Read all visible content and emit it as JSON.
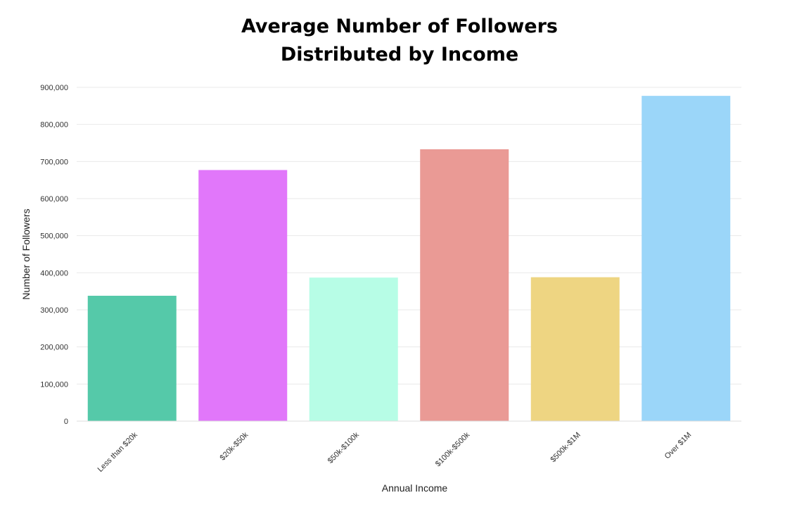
{
  "chart_data": {
    "type": "bar",
    "title": [
      "Average Number of Followers",
      "Distributed by Income"
    ],
    "xlabel": "Annual Income",
    "ylabel": "Number of Followers",
    "categories": [
      "Less than $20k",
      "$20k-$50k",
      "$50k-$100k",
      "$100k-$500k",
      "$500k-$1M",
      "Over $1M"
    ],
    "values": [
      338000,
      677000,
      387000,
      733000,
      388000,
      877000
    ],
    "colors": [
      "#55c9a9",
      "#e177fa",
      "#b7fde6",
      "#ea9a95",
      "#eed582",
      "#9bd6f9"
    ],
    "ylim": [
      0,
      900000
    ],
    "yticks": [
      0,
      100000,
      200000,
      300000,
      400000,
      500000,
      600000,
      700000,
      800000,
      900000
    ],
    "ytick_labels": [
      "0",
      "100,000",
      "200,000",
      "300,000",
      "400,000",
      "500,000",
      "600,000",
      "700,000",
      "800,000",
      "900,000"
    ],
    "grid": true,
    "legend": "none"
  }
}
